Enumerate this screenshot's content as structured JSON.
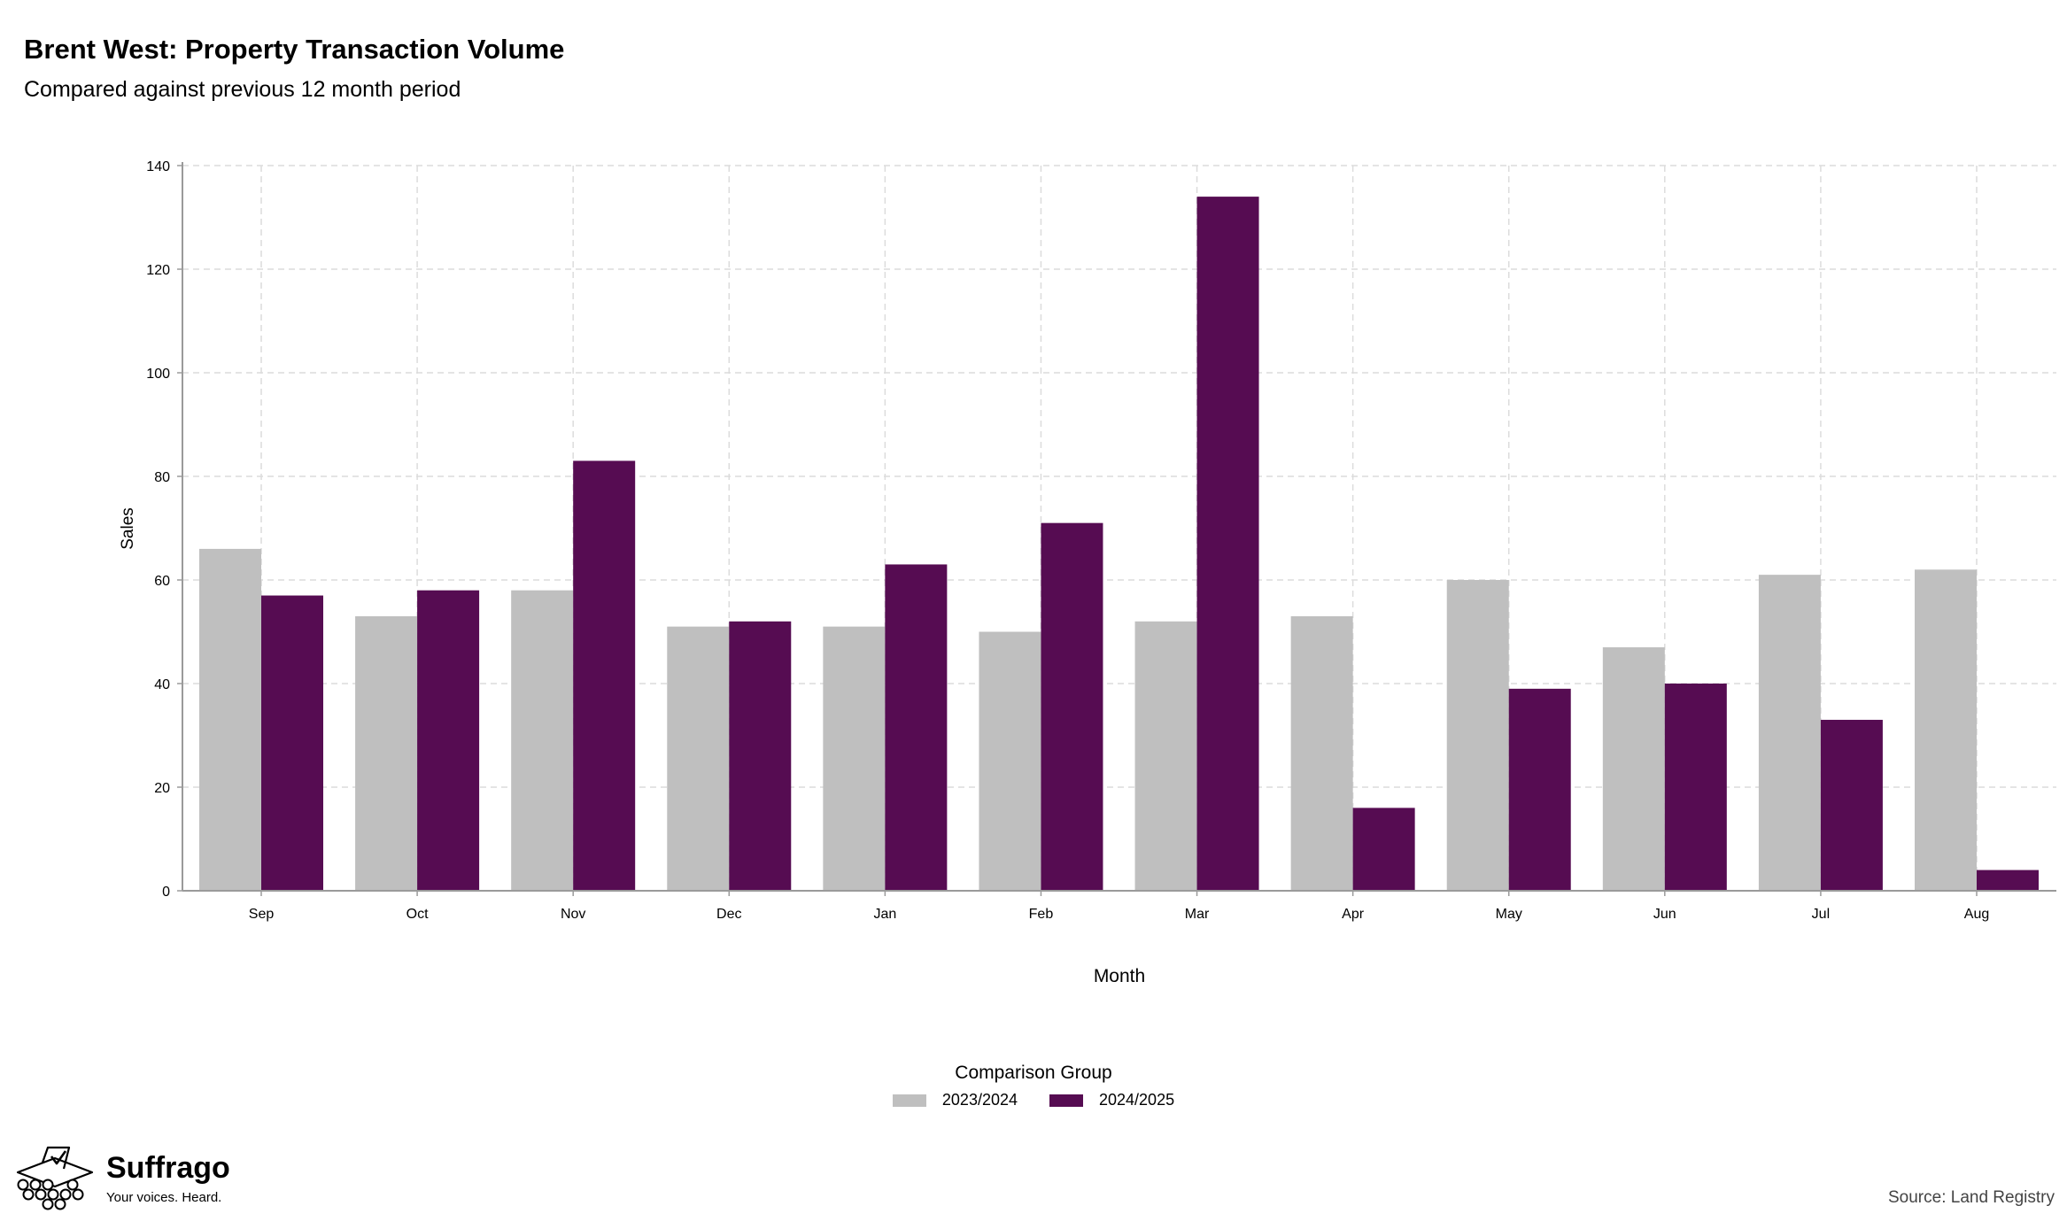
{
  "header": {
    "title": "Brent West: Property Transaction Volume",
    "subtitle": "Compared against previous 12 month period"
  },
  "colors": {
    "series_2023": "#bfbfbf",
    "series_2024": "#560c52",
    "grid": "#dcdcdc",
    "axis": "#9a9a9a"
  },
  "chart_data": {
    "type": "bar",
    "title": "Brent West: Property Transaction Volume",
    "subtitle": "Compared against previous 12 month period",
    "xlabel": "Month",
    "ylabel": "Sales",
    "ylim": [
      0,
      140
    ],
    "yticks": [
      0,
      20,
      40,
      60,
      80,
      100,
      120,
      140
    ],
    "grid": true,
    "legend_position": "bottom",
    "legend_title": "Comparison Group",
    "categories": [
      "Sep",
      "Oct",
      "Nov",
      "Dec",
      "Jan",
      "Feb",
      "Mar",
      "Apr",
      "May",
      "Jun",
      "Jul",
      "Aug"
    ],
    "series": [
      {
        "name": "2023/2024",
        "color": "#bfbfbf",
        "values": [
          66,
          53,
          58,
          51,
          51,
          50,
          52,
          53,
          60,
          47,
          61,
          62
        ]
      },
      {
        "name": "2024/2025",
        "color": "#560c52",
        "values": [
          57,
          58,
          83,
          52,
          63,
          71,
          134,
          16,
          39,
          40,
          33,
          4
        ]
      }
    ]
  },
  "branding": {
    "name": "Suffrago",
    "tagline": "Your voices. Heard.",
    "logo_icon": "ballot-box-icon"
  },
  "footer": {
    "source": "Source: Land Registry"
  }
}
